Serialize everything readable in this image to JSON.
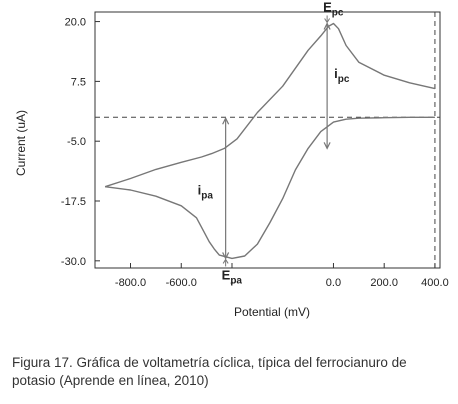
{
  "chart_data": {
    "type": "line",
    "xlabel": "Potential (mV)",
    "ylabel": "Current (uA)",
    "xlim": [
      -940,
      420
    ],
    "ylim": [
      -31.5,
      22
    ],
    "xticks": [
      {
        "value": -800,
        "label": "-800.0"
      },
      {
        "value": -600,
        "label": "-600.0"
      },
      {
        "value": -400,
        "label": "-"
      },
      {
        "value": 0,
        "label": "0.0"
      },
      {
        "value": 200,
        "label": "200.0"
      },
      {
        "value": 400,
        "label": "400.0"
      }
    ],
    "yticks": [
      {
        "value": 20,
        "label": "20.0"
      },
      {
        "value": 7.5,
        "label": "7.5"
      },
      {
        "value": -5,
        "label": "-5.0"
      },
      {
        "value": -17.5,
        "label": "-17.5"
      },
      {
        "value": -30,
        "label": "-30.0"
      }
    ],
    "grid": false,
    "baseline_current": 0,
    "switch_potential": 400,
    "series": [
      {
        "x": [
          -900,
          -800,
          -700,
          -600,
          -520,
          -480,
          -430,
          -380,
          -300,
          -200,
          -100,
          -50,
          -20,
          0,
          20,
          50,
          100,
          200,
          300,
          400
        ],
        "y": [
          -14.5,
          -12.8,
          -10.9,
          -9.4,
          -8.3,
          -7.6,
          -6.5,
          -4.5,
          1.0,
          6.5,
          14.0,
          17.0,
          19.0,
          19.6,
          18.5,
          15.0,
          11.5,
          8.8,
          7.2,
          6.0
        ]
      },
      {
        "x": [
          400,
          300,
          200,
          100,
          50,
          0,
          -50,
          -100,
          -150,
          -200,
          -250,
          -300,
          -350,
          -400,
          -450,
          -470,
          -490,
          -510,
          -540,
          -600,
          -700,
          -800,
          -900
        ],
        "y": [
          0.0,
          0.0,
          -0.1,
          -0.2,
          -0.4,
          -1.0,
          -3.0,
          -6.5,
          -11.0,
          -17.0,
          -22.0,
          -26.5,
          -29.0,
          -29.5,
          -28.8,
          -27.5,
          -26.0,
          -24.0,
          -21.0,
          -18.5,
          -16.5,
          -15.2,
          -14.5
        ]
      }
    ],
    "annotations": {
      "e_pc": {
        "main": "E",
        "sub": "pc",
        "x": -25,
        "y": 19.6
      },
      "i_pc": {
        "main": "i",
        "sub": "pc",
        "x": -25,
        "y_top": 19.6,
        "y_bottom": -6.5
      },
      "e_pa": {
        "main": "E",
        "sub": "pa",
        "x": -425,
        "y": -29.5
      },
      "i_pa": {
        "main": "i",
        "sub": "pa",
        "x": -425,
        "y_top": -0.2,
        "y_bottom": -29.5
      }
    }
  },
  "caption": "Figura 17. Gráfica de voltametría cíclica, típica del ferrocianuro de potasio (Aprende en línea, 2010)"
}
